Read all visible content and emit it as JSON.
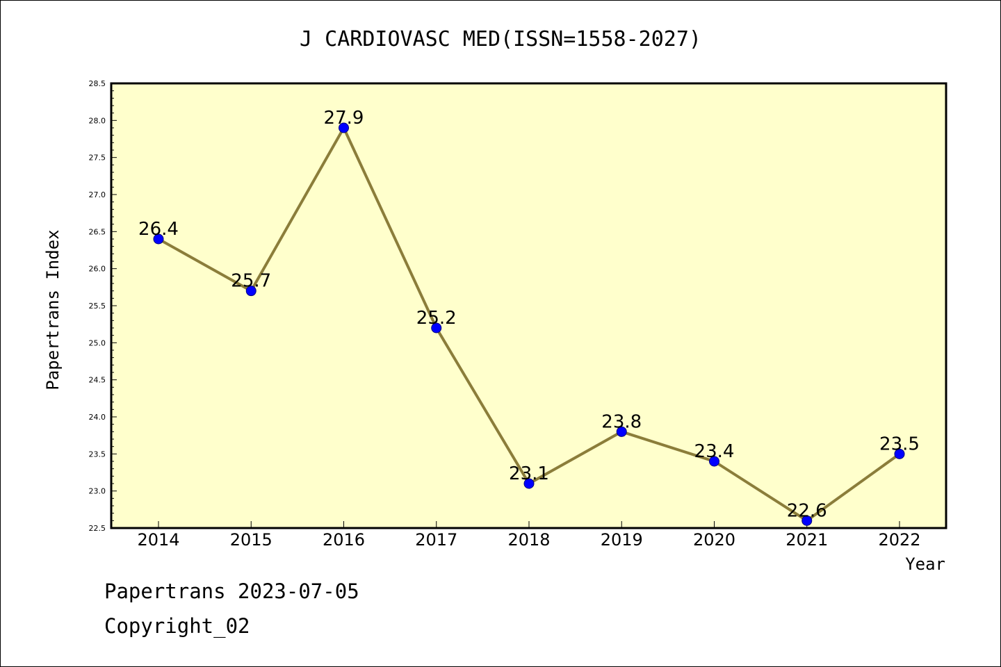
{
  "chart_data": {
    "type": "line",
    "title": "J CARDIOVASC MED(ISSN=1558-2027)",
    "xlabel": "Year",
    "ylabel": "Papertrans Index",
    "categories": [
      "2014",
      "2015",
      "2016",
      "2017",
      "2018",
      "2019",
      "2020",
      "2021",
      "2022"
    ],
    "series": [
      {
        "values": [
          26.4,
          25.7,
          27.9,
          25.2,
          23.1,
          23.8,
          23.4,
          22.6,
          23.5
        ]
      }
    ],
    "data_labels": [
      "26.4",
      "25.7",
      "27.9",
      "25.2",
      "23.1",
      "23.8",
      "23.4",
      "22.6",
      "23.5"
    ],
    "ylim": [
      22.5,
      28.5
    ],
    "yticks": [
      "22.5",
      "23.0",
      "23.5",
      "24.0",
      "24.5",
      "25.0",
      "25.5",
      "26.0",
      "26.5",
      "27.0",
      "27.5",
      "28.0",
      "28.5"
    ],
    "grid": false,
    "legend": "none",
    "colors": {
      "plot_background": "#ffffcc",
      "line": "#8b7d3a",
      "marker_fill": "#0000ff",
      "marker_edge": "#000080"
    }
  },
  "footer": {
    "line1": "Papertrans 2023-07-05",
    "line2": "Copyright_02"
  }
}
